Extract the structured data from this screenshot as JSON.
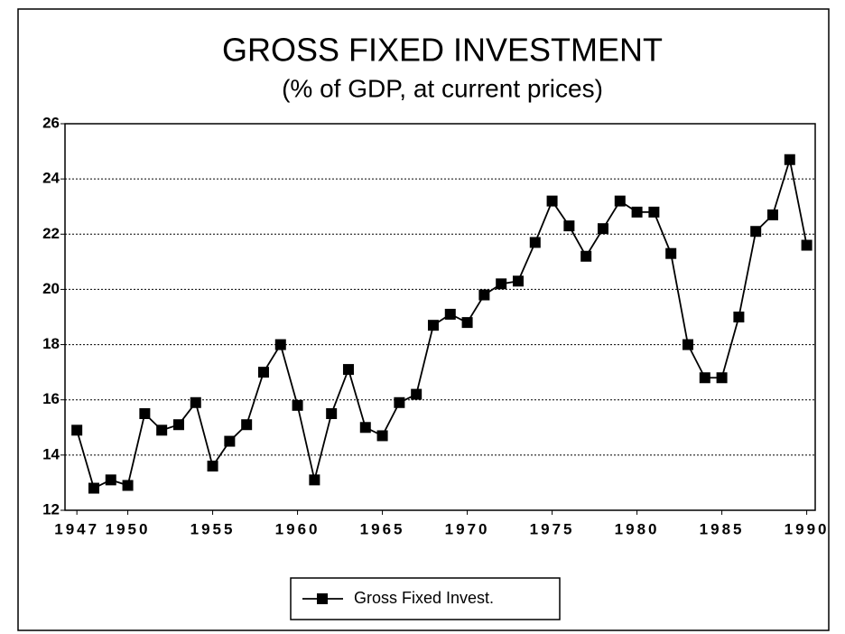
{
  "chart_data": {
    "type": "line",
    "title": "GROSS FIXED INVESTMENT",
    "subtitle": "(% of GDP, at current prices)",
    "x": [
      1947,
      1948,
      1949,
      1950,
      1951,
      1952,
      1953,
      1954,
      1955,
      1956,
      1957,
      1958,
      1959,
      1960,
      1961,
      1962,
      1963,
      1964,
      1965,
      1966,
      1967,
      1968,
      1969,
      1970,
      1971,
      1972,
      1973,
      1974,
      1975,
      1976,
      1977,
      1978,
      1979,
      1980,
      1981,
      1982,
      1983,
      1984,
      1985,
      1986,
      1987,
      1988,
      1989,
      1990
    ],
    "series": [
      {
        "name": "Gross Fixed Invest.",
        "color": "#000000",
        "values": [
          14.9,
          12.8,
          13.1,
          12.9,
          15.5,
          14.9,
          15.1,
          15.9,
          13.6,
          14.5,
          15.1,
          17.0,
          18.0,
          15.8,
          13.1,
          15.5,
          17.1,
          15.0,
          14.7,
          15.9,
          16.2,
          18.7,
          19.1,
          18.8,
          19.8,
          20.2,
          20.3,
          21.7,
          23.2,
          22.3,
          21.2,
          22.2,
          23.2,
          22.8,
          22.8,
          21.3,
          18.0,
          16.8,
          16.8,
          19.0,
          22.1,
          22.7,
          24.7,
          21.6
        ]
      }
    ],
    "xlim": [
      1946.3,
      1990.5
    ],
    "xticks": [
      1947,
      1950,
      1955,
      1960,
      1965,
      1970,
      1975,
      1980,
      1985,
      1990
    ],
    "ylim": [
      12,
      26
    ],
    "yticks": [
      12,
      14,
      16,
      18,
      20,
      22,
      24,
      26
    ],
    "grid": true,
    "legend": "bottom"
  }
}
